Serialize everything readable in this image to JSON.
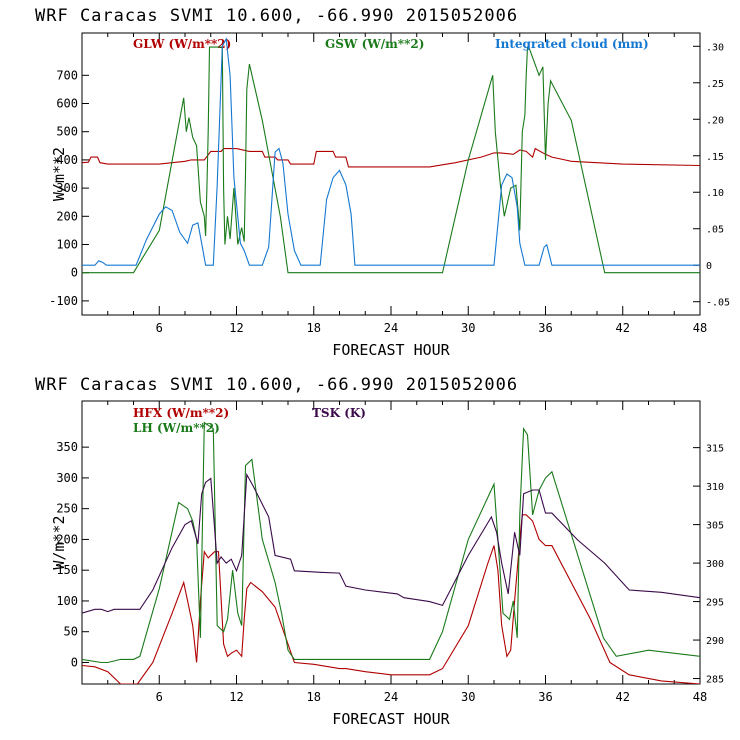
{
  "chart_data": [
    {
      "type": "line",
      "title": "WRF  Caracas SVMI  10.600, -66.990  2015052006",
      "xlabel": "FORECAST HOUR",
      "ylabel": "W/m**2",
      "xlim": [
        0,
        48
      ],
      "ylim": [
        -150,
        850
      ],
      "xticks": [
        6,
        12,
        18,
        24,
        30,
        36,
        42,
        48
      ],
      "yticks": [
        -100,
        0,
        100,
        200,
        300,
        400,
        500,
        600,
        700
      ],
      "ytick_labels": [
        "-100",
        "0",
        "100",
        "200",
        "300",
        "400",
        "500",
        "600",
        "700"
      ],
      "y2lim": [
        -0.0682,
        0.3182
      ],
      "y2ticks": [
        -0.05,
        0,
        0.05,
        0.1,
        0.15,
        0.2,
        0.25,
        0.3
      ],
      "y2tick_labels": [
        "-.05",
        "0",
        ".05",
        ".10",
        ".15",
        ".20",
        ".25",
        ".30"
      ],
      "legend_position": "top",
      "series": [
        {
          "name": "GLW (W/m**2)",
          "color": "#b00000",
          "axis": "left",
          "x": [
            0,
            0.5,
            0.7,
            1.2,
            1.4,
            2,
            6,
            8,
            8.5,
            9.5,
            10,
            10.8,
            11,
            12,
            13,
            14,
            14.2,
            15,
            15.2,
            16,
            16.2,
            18,
            18.2,
            19.5,
            19.7,
            20.5,
            20.7,
            24,
            27,
            29,
            31,
            32,
            32.5,
            33.5,
            34,
            34.5,
            35,
            35.2,
            36,
            36.5,
            37.5,
            38,
            42,
            48
          ],
          "y": [
            390,
            392,
            410,
            410,
            390,
            385,
            385,
            395,
            400,
            400,
            430,
            430,
            440,
            440,
            430,
            430,
            410,
            410,
            400,
            400,
            385,
            385,
            430,
            430,
            410,
            410,
            375,
            375,
            375,
            390,
            410,
            425,
            425,
            420,
            435,
            430,
            410,
            440,
            420,
            410,
            400,
            395,
            385,
            380
          ]
        },
        {
          "name": "GSW (W/m**2)",
          "color": "#1a7a1a",
          "axis": "left",
          "x": [
            0,
            4,
            6,
            7.9,
            8.1,
            8.3,
            8.6,
            8.9,
            9.2,
            9.5,
            9.6,
            9.7,
            9.8,
            9.9,
            10.1,
            10.9,
            11,
            11.1,
            11.3,
            11.5,
            11.8,
            12.1,
            12.4,
            12.6,
            12.7,
            12.8,
            13,
            14,
            15.4,
            16,
            28,
            30,
            31.9,
            32.1,
            32.5,
            32.8,
            33.3,
            33.7,
            34,
            34.2,
            34.4,
            34.5,
            34.6,
            34.7,
            35.5,
            35.8,
            36,
            36.2,
            36.4,
            38,
            40.6,
            48
          ],
          "y": [
            0,
            0,
            150,
            620,
            500,
            550,
            480,
            450,
            250,
            200,
            130,
            300,
            500,
            800,
            800,
            800,
            300,
            100,
            200,
            120,
            300,
            100,
            160,
            110,
            350,
            650,
            740,
            540,
            200,
            0,
            0,
            400,
            700,
            500,
            310,
            200,
            300,
            310,
            150,
            500,
            560,
            700,
            800,
            800,
            700,
            730,
            400,
            600,
            680,
            540,
            0,
            0
          ]
        },
        {
          "name": "Integrated cloud (mm)",
          "color": "#1478d2",
          "axis": "right",
          "x": [
            0,
            1,
            1.3,
            1.6,
            1.9,
            4.2,
            5,
            6,
            6.5,
            7,
            7.6,
            8.2,
            8.6,
            9,
            9.4,
            9.6,
            10.2,
            10.5,
            10.9,
            11.2,
            11.5,
            11.8,
            12.3,
            12.6,
            13,
            14,
            14.5,
            15,
            15.3,
            15.6,
            16,
            16.5,
            17,
            18.5,
            19,
            19.5,
            20,
            20.5,
            20.9,
            21.2,
            32,
            32.6,
            33,
            33.4,
            33.8,
            34,
            34.4,
            35,
            35.5,
            35.9,
            36.1,
            36.5,
            48
          ],
          "y": [
            0,
            0,
            0.006,
            0.004,
            0,
            0,
            0.035,
            0.07,
            0.08,
            0.075,
            0.045,
            0.03,
            0.055,
            0.058,
            0.02,
            0,
            0,
            0.11,
            0.3,
            0.31,
            0.26,
            0.12,
            0.03,
            0.02,
            0,
            0,
            0.025,
            0.155,
            0.16,
            0.14,
            0.07,
            0.02,
            0,
            0,
            0.09,
            0.12,
            0.13,
            0.11,
            0.07,
            0,
            0,
            0.11,
            0.125,
            0.12,
            0.08,
            0.03,
            0,
            0,
            0,
            0.025,
            0.028,
            0,
            0
          ]
        }
      ]
    },
    {
      "type": "line",
      "title": "WRF  Caracas SVMI  10.600, -66.990  2015052006",
      "xlabel": "FORECAST HOUR",
      "ylabel": "W/m**2",
      "xlim": [
        0,
        48
      ],
      "ylim": [
        -35,
        425
      ],
      "xticks": [
        6,
        12,
        18,
        24,
        30,
        36,
        42,
        48
      ],
      "yticks": [
        0,
        50,
        100,
        150,
        200,
        250,
        300,
        350
      ],
      "ytick_labels": [
        "0",
        "50",
        "100",
        "150",
        "200",
        "250",
        "300",
        "350"
      ],
      "y2lim": [
        284.29,
        321.06
      ],
      "y2ticks": [
        285,
        290,
        295,
        300,
        305,
        310,
        315
      ],
      "y2tick_labels": [
        "285",
        "290",
        "295",
        "300",
        "305",
        "310",
        "315"
      ],
      "legend_position": "top-left",
      "series": [
        {
          "name": "HFX (W/m**2)",
          "color": "#b00000",
          "axis": "left",
          "x": [
            0,
            1,
            2,
            3,
            3.5,
            4.3,
            5.5,
            7,
            7.9,
            8.2,
            8.6,
            8.9,
            9.2,
            9.5,
            9.8,
            10.3,
            10.6,
            11,
            11.3,
            11.6,
            12,
            12.4,
            12.6,
            12.8,
            13.1,
            14,
            15,
            16.5,
            18,
            20,
            20.5,
            22,
            24,
            27,
            28,
            30,
            31.5,
            32,
            32.3,
            32.6,
            33,
            33.3,
            33.6,
            34,
            34.2,
            34.5,
            35,
            35.5,
            36,
            36.5,
            39.5,
            41,
            42.5,
            45,
            48
          ],
          "y": [
            -5,
            -7,
            -15,
            -35,
            -35,
            -35,
            0,
            80,
            130,
            100,
            60,
            0,
            100,
            180,
            170,
            180,
            180,
            30,
            10,
            15,
            20,
            10,
            70,
            120,
            130,
            115,
            90,
            0,
            -3,
            -10,
            -10,
            -15,
            -20,
            -20,
            -10,
            60,
            160,
            190,
            150,
            60,
            10,
            20,
            100,
            200,
            240,
            240,
            230,
            200,
            190,
            190,
            70,
            0,
            -20,
            -30,
            -35
          ]
        },
        {
          "name": "LH (W/m**2)",
          "color": "#1a7a1a",
          "axis": "left",
          "x": [
            0,
            1.5,
            2,
            3,
            4,
            4.5,
            6,
            7.5,
            8.2,
            8.6,
            8.9,
            9.2,
            9.5,
            10.2,
            10.5,
            11,
            11.3,
            11.7,
            12.1,
            12.4,
            12.7,
            13.2,
            14,
            15,
            15.5,
            16,
            16.5,
            20,
            27,
            28,
            30,
            32,
            32.3,
            32.7,
            33.2,
            33.5,
            33.8,
            34,
            34.3,
            34.6,
            35,
            35.5,
            36,
            36.5,
            40.5,
            41.5,
            44,
            48
          ],
          "y": [
            5,
            0,
            0,
            5,
            5,
            10,
            120,
            260,
            250,
            230,
            200,
            40,
            390,
            380,
            60,
            50,
            70,
            150,
            80,
            60,
            320,
            330,
            200,
            130,
            80,
            20,
            5,
            5,
            5,
            50,
            200,
            290,
            200,
            80,
            70,
            100,
            40,
            240,
            380,
            370,
            240,
            280,
            300,
            310,
            40,
            10,
            20,
            10
          ]
        },
        {
          "name": "TSK (K)",
          "color": "#3a0a4a",
          "axis": "right",
          "x": [
            0,
            1,
            1.5,
            2,
            2.5,
            3,
            3.5,
            4.5,
            5.5,
            7,
            8,
            8.5,
            9,
            9.3,
            9.6,
            10,
            10.5,
            10.8,
            11.2,
            11.6,
            12,
            12.4,
            12.8,
            13.3,
            14.5,
            15,
            16.2,
            16.5,
            18.5,
            20,
            20.5,
            22,
            24.5,
            25,
            27,
            28,
            30,
            31.8,
            32.2,
            32.6,
            33.1,
            33.6,
            34,
            34.3,
            35,
            35.5,
            36,
            36.5,
            38.5,
            40.6,
            42.5,
            45,
            48
          ],
          "y": [
            293.5,
            294,
            294,
            293.7,
            294,
            294,
            294,
            294,
            296.5,
            302,
            305,
            305.5,
            302.5,
            309,
            310.5,
            311,
            300,
            300.8,
            300,
            300.5,
            299,
            301,
            311.5,
            310,
            306,
            301,
            300.5,
            299,
            298.8,
            298.7,
            297,
            296.5,
            296,
            295.5,
            295,
            294.5,
            301,
            306,
            304,
            300,
            296,
            304,
            301,
            309,
            309.5,
            309.5,
            306.5,
            306.5,
            303,
            300,
            296.5,
            296.2,
            295.5
          ]
        }
      ]
    }
  ]
}
